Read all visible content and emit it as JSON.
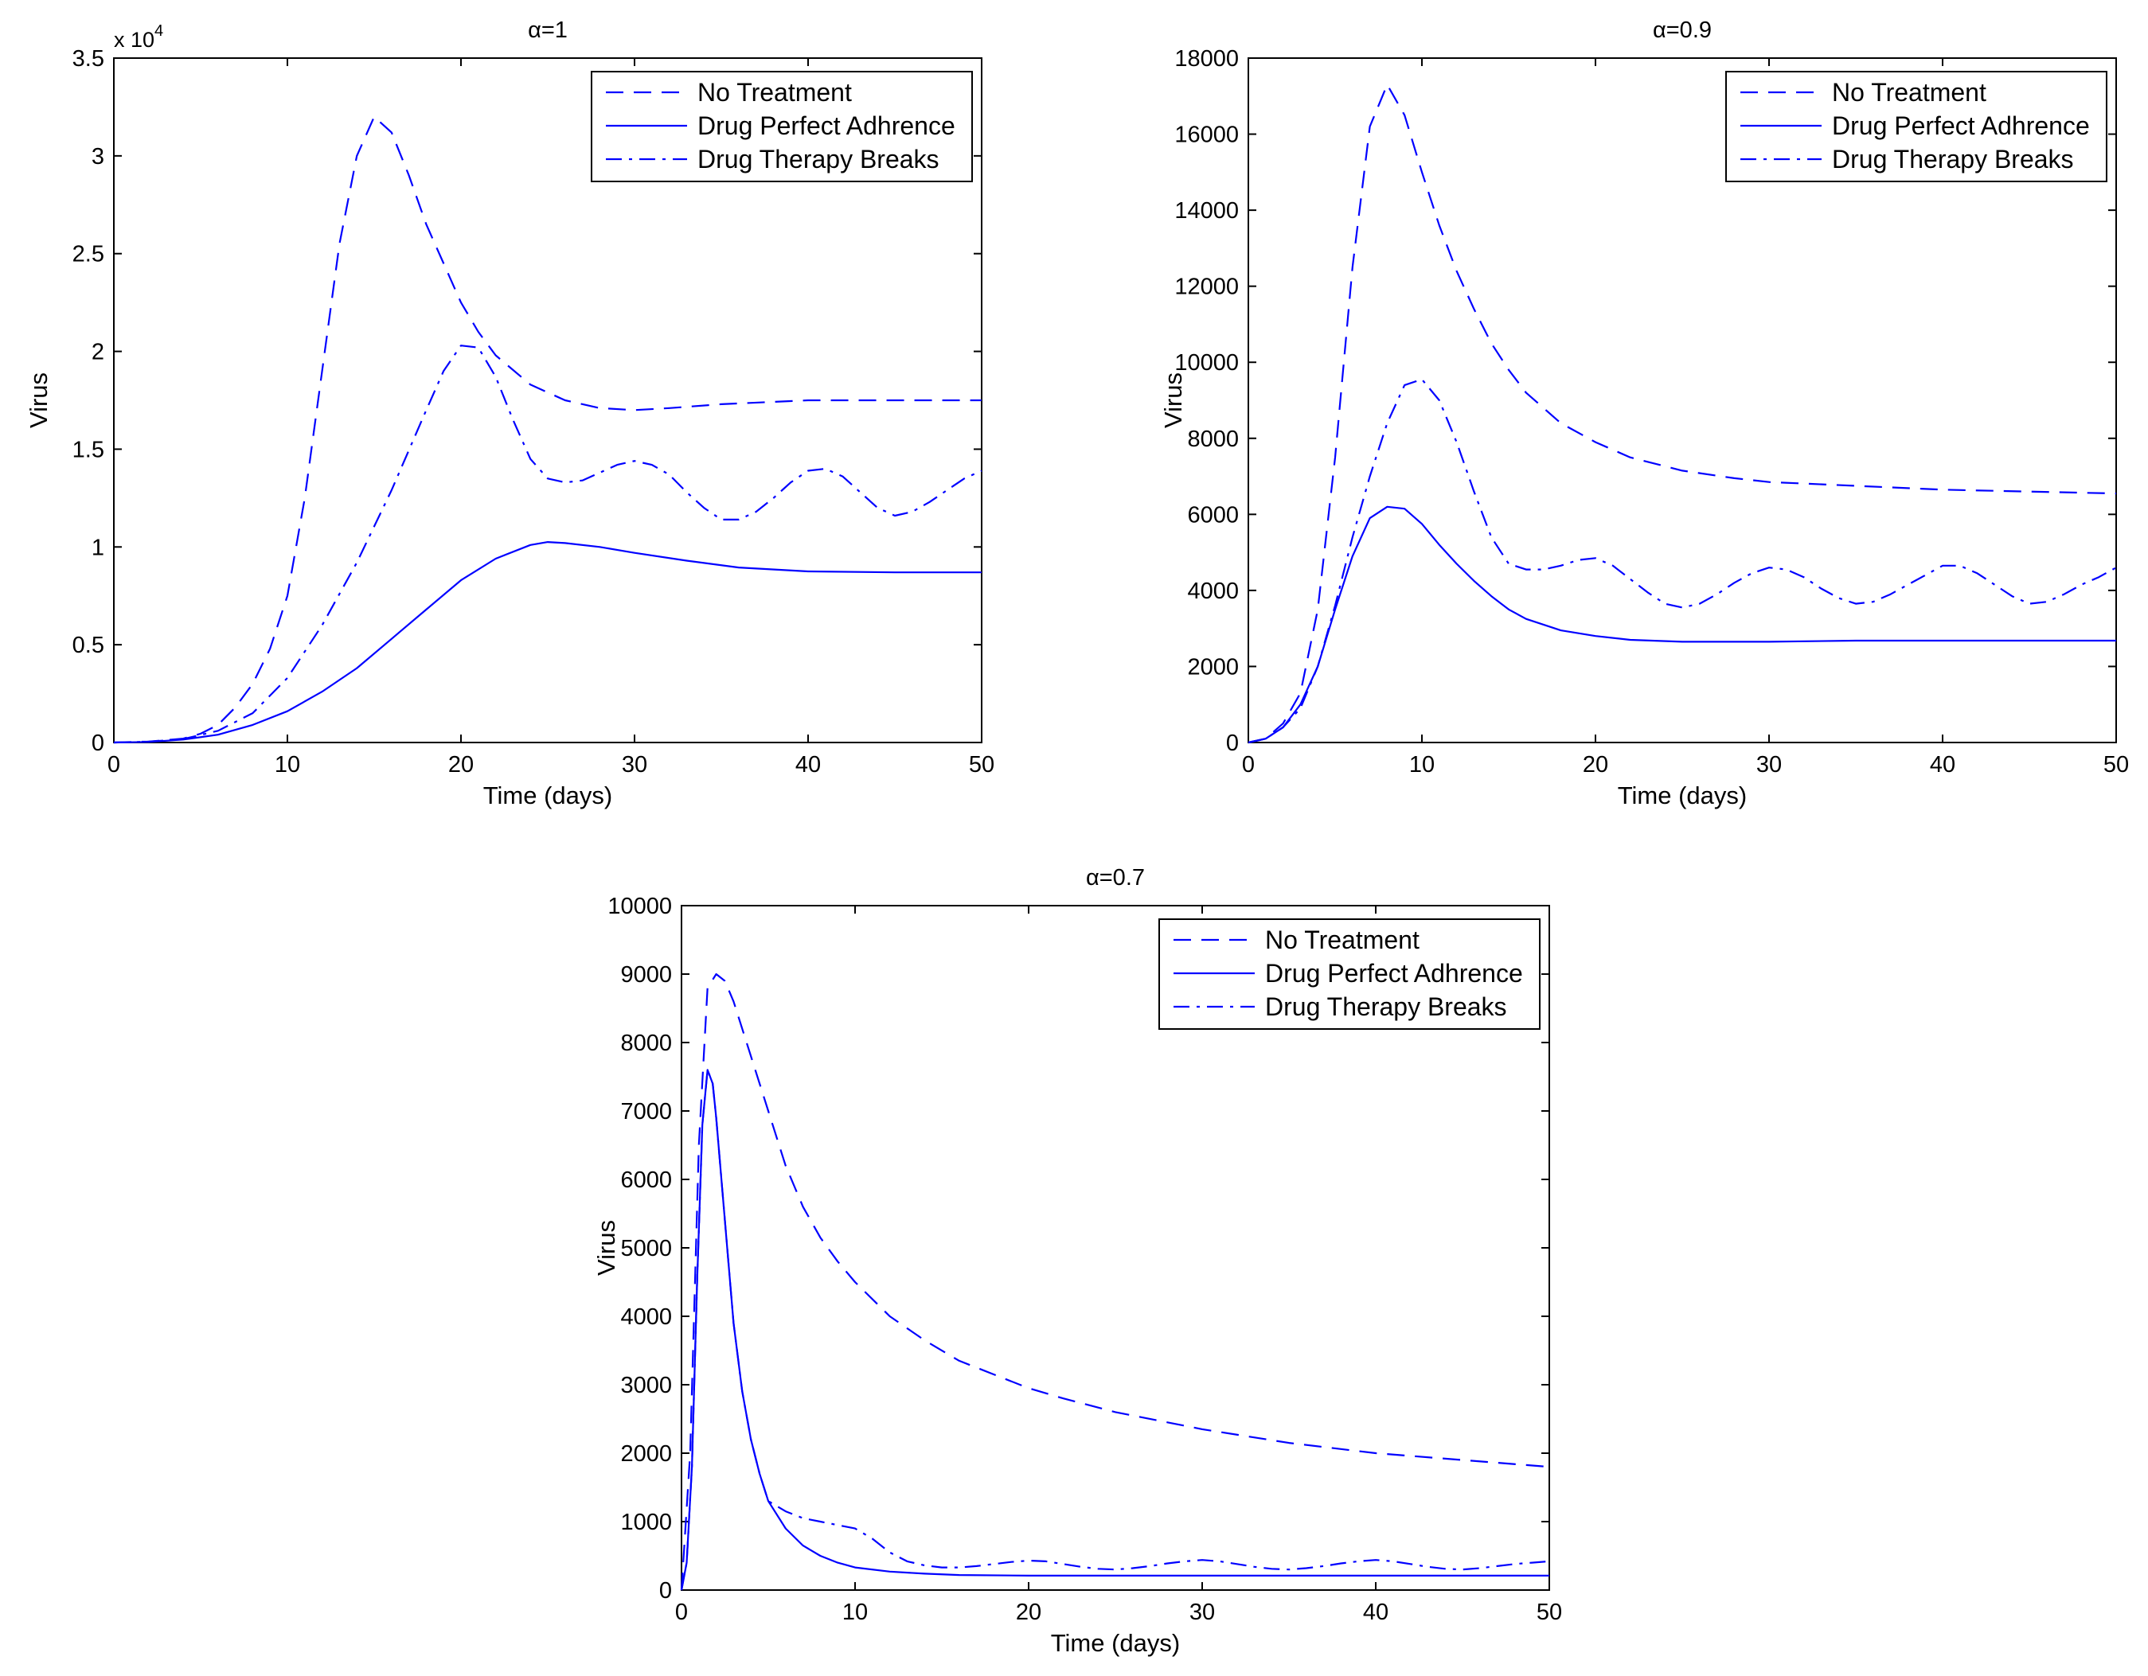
{
  "colors": {
    "series": "#0000FF",
    "axes": "#000000",
    "background": "#FFFFFF"
  },
  "chart_data": [
    {
      "type": "line",
      "title": "α=1",
      "xlabel": "Time (days)",
      "ylabel": "Virus",
      "xlim": [
        0,
        50
      ],
      "ylim": [
        0,
        35000
      ],
      "xticks": [
        0,
        10,
        20,
        30,
        40,
        50
      ],
      "yticks": [
        0,
        5000,
        10000,
        15000,
        20000,
        25000,
        30000,
        35000
      ],
      "ytick_labels": [
        "0",
        "0.5",
        "1",
        "1.5",
        "2",
        "2.5",
        "3",
        "3.5"
      ],
      "y_multiplier_base": "x 10",
      "y_multiplier_exp": "4",
      "legend_position": "top-right",
      "series": [
        {
          "name": "No Treatment",
          "style": "dashed",
          "x": [
            0,
            2,
            4,
            5,
            6,
            7,
            8,
            9,
            10,
            11,
            12,
            13,
            14,
            15,
            16,
            17,
            18,
            19,
            20,
            21,
            22,
            24,
            26,
            28,
            30,
            32,
            35,
            40,
            45,
            50
          ],
          "y": [
            0,
            50,
            200,
            450,
            900,
            1800,
            3000,
            4800,
            7500,
            12500,
            19000,
            25500,
            30000,
            32000,
            31200,
            29000,
            26500,
            24500,
            22500,
            21000,
            19800,
            18300,
            17500,
            17100,
            17000,
            17100,
            17300,
            17500,
            17500,
            17500
          ]
        },
        {
          "name": "Drug Perfect Adhrence",
          "style": "solid",
          "x": [
            0,
            2,
            4,
            6,
            8,
            10,
            12,
            14,
            16,
            18,
            20,
            22,
            24,
            25,
            26,
            28,
            30,
            33,
            36,
            40,
            45,
            50
          ],
          "y": [
            0,
            30,
            150,
            400,
            900,
            1600,
            2600,
            3800,
            5300,
            6800,
            8300,
            9400,
            10100,
            10250,
            10200,
            10000,
            9700,
            9300,
            8950,
            8750,
            8700,
            8700
          ]
        },
        {
          "name": "Drug Therapy Breaks",
          "style": "dashdot",
          "x": [
            0,
            2,
            4,
            6,
            8,
            10,
            12,
            14,
            16,
            18,
            19,
            20,
            21,
            22,
            23,
            24,
            25,
            26,
            27,
            28,
            29,
            30,
            31,
            32,
            33,
            34,
            35,
            36,
            37,
            38,
            39,
            40,
            41,
            42,
            43,
            44,
            45,
            46,
            47,
            48,
            49,
            50
          ],
          "y": [
            0,
            40,
            180,
            600,
            1500,
            3300,
            6000,
            9200,
            12900,
            17000,
            19000,
            20300,
            20200,
            18700,
            16500,
            14500,
            13500,
            13300,
            13400,
            13800,
            14200,
            14400,
            14200,
            13700,
            12800,
            12000,
            11400,
            11400,
            11800,
            12500,
            13300,
            13900,
            14000,
            13600,
            12800,
            12000,
            11600,
            11800,
            12300,
            12900,
            13500,
            13900
          ]
        }
      ]
    },
    {
      "type": "line",
      "title": "α=0.9",
      "xlabel": "Time (days)",
      "ylabel": "Virus",
      "xlim": [
        0,
        50
      ],
      "ylim": [
        0,
        18000
      ],
      "xticks": [
        0,
        10,
        20,
        30,
        40,
        50
      ],
      "yticks": [
        0,
        2000,
        4000,
        6000,
        8000,
        10000,
        12000,
        14000,
        16000,
        18000
      ],
      "ytick_labels": [
        "0",
        "2000",
        "4000",
        "6000",
        "8000",
        "10000",
        "12000",
        "14000",
        "16000",
        "18000"
      ],
      "legend_position": "top-right",
      "series": [
        {
          "name": "No Treatment",
          "style": "dashed",
          "x": [
            0,
            1,
            2,
            3,
            4,
            5,
            6,
            7,
            8,
            9,
            10,
            11,
            12,
            13,
            14,
            15,
            16,
            18,
            20,
            22,
            25,
            28,
            30,
            35,
            40,
            45,
            50
          ],
          "y": [
            0,
            100,
            500,
            1300,
            3500,
            7500,
            12500,
            16200,
            17300,
            16500,
            15000,
            13600,
            12400,
            11400,
            10500,
            9800,
            9200,
            8400,
            7900,
            7500,
            7150,
            6950,
            6850,
            6750,
            6650,
            6600,
            6550
          ]
        },
        {
          "name": "Drug Perfect Adhrence",
          "style": "solid",
          "x": [
            0,
            1,
            2,
            3,
            4,
            5,
            6,
            7,
            8,
            9,
            10,
            11,
            12,
            13,
            14,
            15,
            16,
            18,
            20,
            22,
            25,
            30,
            35,
            40,
            45,
            50
          ],
          "y": [
            0,
            100,
            400,
            1000,
            2000,
            3500,
            4900,
            5900,
            6200,
            6150,
            5750,
            5200,
            4700,
            4250,
            3850,
            3500,
            3250,
            2950,
            2800,
            2700,
            2650,
            2650,
            2680,
            2680,
            2680,
            2680
          ]
        },
        {
          "name": "Drug Therapy Breaks",
          "style": "dashdot",
          "x": [
            0,
            1,
            2,
            3,
            4,
            5,
            6,
            7,
            8,
            9,
            10,
            11,
            12,
            13,
            14,
            15,
            16,
            17,
            18,
            19,
            20,
            21,
            22,
            23,
            24,
            25,
            26,
            27,
            28,
            29,
            30,
            31,
            32,
            33,
            34,
            35,
            36,
            37,
            38,
            39,
            40,
            41,
            42,
            43,
            44,
            45,
            46,
            47,
            48,
            49,
            50
          ],
          "y": [
            0,
            100,
            400,
            900,
            2000,
            3600,
            5400,
            7000,
            8400,
            9400,
            9550,
            9000,
            7900,
            6600,
            5400,
            4700,
            4550,
            4550,
            4650,
            4800,
            4850,
            4650,
            4300,
            3950,
            3650,
            3550,
            3650,
            3900,
            4200,
            4450,
            4600,
            4550,
            4350,
            4050,
            3800,
            3650,
            3700,
            3900,
            4150,
            4400,
            4650,
            4650,
            4450,
            4150,
            3850,
            3650,
            3700,
            3900,
            4150,
            4350,
            4600
          ]
        }
      ]
    },
    {
      "type": "line",
      "title": "α=0.7",
      "xlabel": "Time (days)",
      "ylabel": "Virus",
      "xlim": [
        0,
        50
      ],
      "ylim": [
        0,
        10000
      ],
      "xticks": [
        0,
        10,
        20,
        30,
        40,
        50
      ],
      "yticks": [
        0,
        1000,
        2000,
        3000,
        4000,
        5000,
        6000,
        7000,
        8000,
        9000,
        10000
      ],
      "ytick_labels": [
        "0",
        "1000",
        "2000",
        "3000",
        "4000",
        "5000",
        "6000",
        "7000",
        "8000",
        "9000",
        "10000"
      ],
      "legend_position": "top-right",
      "series": [
        {
          "name": "No Treatment",
          "style": "dashed",
          "x": [
            0,
            0.5,
            1,
            1.5,
            2,
            2.5,
            3,
            4,
            5,
            6,
            7,
            8,
            9,
            10,
            12,
            14,
            16,
            18,
            20,
            22,
            25,
            28,
            30,
            35,
            40,
            45,
            50
          ],
          "y": [
            0,
            2000,
            6500,
            8800,
            9000,
            8900,
            8600,
            7800,
            7000,
            6200,
            5600,
            5150,
            4800,
            4500,
            4000,
            3650,
            3350,
            3150,
            2950,
            2800,
            2600,
            2450,
            2350,
            2150,
            2000,
            1900,
            1800
          ]
        },
        {
          "name": "Drug Perfect Adhrence",
          "style": "solid",
          "x": [
            0,
            0.3,
            0.6,
            0.9,
            1.2,
            1.5,
            1.8,
            2,
            2.5,
            3,
            3.5,
            4,
            4.5,
            5,
            6,
            7,
            8,
            9,
            10,
            12,
            14,
            16,
            20,
            25,
            30,
            40,
            50
          ],
          "y": [
            0,
            400,
            1800,
            4500,
            6800,
            7600,
            7400,
            6900,
            5400,
            3900,
            2900,
            2200,
            1700,
            1300,
            900,
            650,
            500,
            400,
            330,
            270,
            240,
            220,
            210,
            210,
            210,
            210,
            210
          ]
        },
        {
          "name": "Drug Therapy Breaks",
          "style": "dashdot",
          "x": [
            0,
            0.3,
            0.6,
            0.9,
            1.2,
            1.5,
            1.8,
            2,
            2.5,
            3,
            3.5,
            4,
            4.5,
            5,
            6,
            7,
            8,
            9,
            10,
            11,
            12,
            13,
            14,
            15,
            16,
            17,
            18,
            19,
            20,
            21,
            22,
            23,
            24,
            25,
            26,
            27,
            28,
            29,
            30,
            31,
            32,
            33,
            34,
            35,
            36,
            37,
            38,
            39,
            40,
            41,
            42,
            43,
            44,
            45,
            46,
            47,
            48,
            49,
            50
          ],
          "y": [
            0,
            400,
            1800,
            4500,
            6800,
            7600,
            7400,
            6900,
            5400,
            3900,
            2900,
            2200,
            1700,
            1300,
            1150,
            1050,
            1000,
            950,
            900,
            750,
            550,
            420,
            360,
            330,
            330,
            350,
            380,
            410,
            430,
            420,
            380,
            340,
            310,
            300,
            320,
            350,
            390,
            420,
            440,
            420,
            380,
            340,
            310,
            300,
            320,
            350,
            390,
            420,
            440,
            420,
            380,
            340,
            310,
            300,
            320,
            350,
            380,
            400,
            420
          ]
        }
      ]
    }
  ]
}
